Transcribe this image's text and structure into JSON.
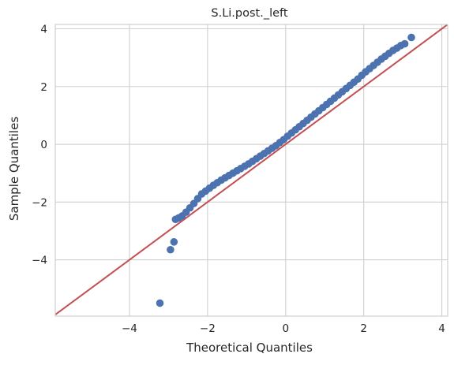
{
  "chart_data": {
    "type": "scatter",
    "title": "S.Li.post._left",
    "xlabel": "Theoretical Quantiles",
    "ylabel": "Sample Quantiles",
    "xlim": [
      -5.9,
      4.15
    ],
    "ylim": [
      -5.95,
      4.15
    ],
    "xticks": [
      -4,
      -2,
      0,
      2,
      4
    ],
    "yticks": [
      -4,
      -2,
      0,
      2,
      4
    ],
    "grid": true,
    "legend": "none",
    "colors": {
      "points": "#4c72b0",
      "reference_line": "#c44e52"
    },
    "reference_line": {
      "slope": 1,
      "intercept": 0
    },
    "series": [
      {
        "values_x": [
          -3.22,
          -2.95,
          -2.86,
          -2.82,
          -2.74,
          -2.65,
          -2.55,
          -2.45,
          -2.35,
          -2.25,
          -2.15,
          -2.05,
          -1.95,
          -1.85,
          -1.75,
          -1.65,
          -1.55,
          -1.45,
          -1.35,
          -1.25,
          -1.15,
          -1.05,
          -0.95,
          -0.85,
          -0.75,
          -0.65,
          -0.55,
          -0.45,
          -0.35,
          -0.25,
          -0.15,
          -0.05,
          0.05,
          0.15,
          0.25,
          0.35,
          0.45,
          0.55,
          0.65,
          0.75,
          0.85,
          0.95,
          1.05,
          1.15,
          1.25,
          1.35,
          1.45,
          1.55,
          1.65,
          1.75,
          1.85,
          1.95,
          2.05,
          2.15,
          2.25,
          2.35,
          2.45,
          2.55,
          2.65,
          2.75,
          2.85,
          2.95,
          3.05,
          3.22
        ],
        "values_y": [
          -5.5,
          -3.65,
          -3.38,
          -2.6,
          -2.55,
          -2.48,
          -2.35,
          -2.2,
          -2.05,
          -1.88,
          -1.72,
          -1.62,
          -1.52,
          -1.42,
          -1.33,
          -1.24,
          -1.16,
          -1.08,
          -1.0,
          -0.92,
          -0.84,
          -0.76,
          -0.68,
          -0.59,
          -0.5,
          -0.41,
          -0.32,
          -0.23,
          -0.14,
          -0.05,
          0.06,
          0.16,
          0.28,
          0.39,
          0.5,
          0.61,
          0.72,
          0.83,
          0.94,
          1.05,
          1.16,
          1.27,
          1.38,
          1.49,
          1.6,
          1.71,
          1.82,
          1.93,
          2.04,
          2.15,
          2.26,
          2.39,
          2.51,
          2.62,
          2.73,
          2.84,
          2.95,
          3.05,
          3.15,
          3.25,
          3.33,
          3.42,
          3.48,
          3.7
        ]
      }
    ]
  }
}
